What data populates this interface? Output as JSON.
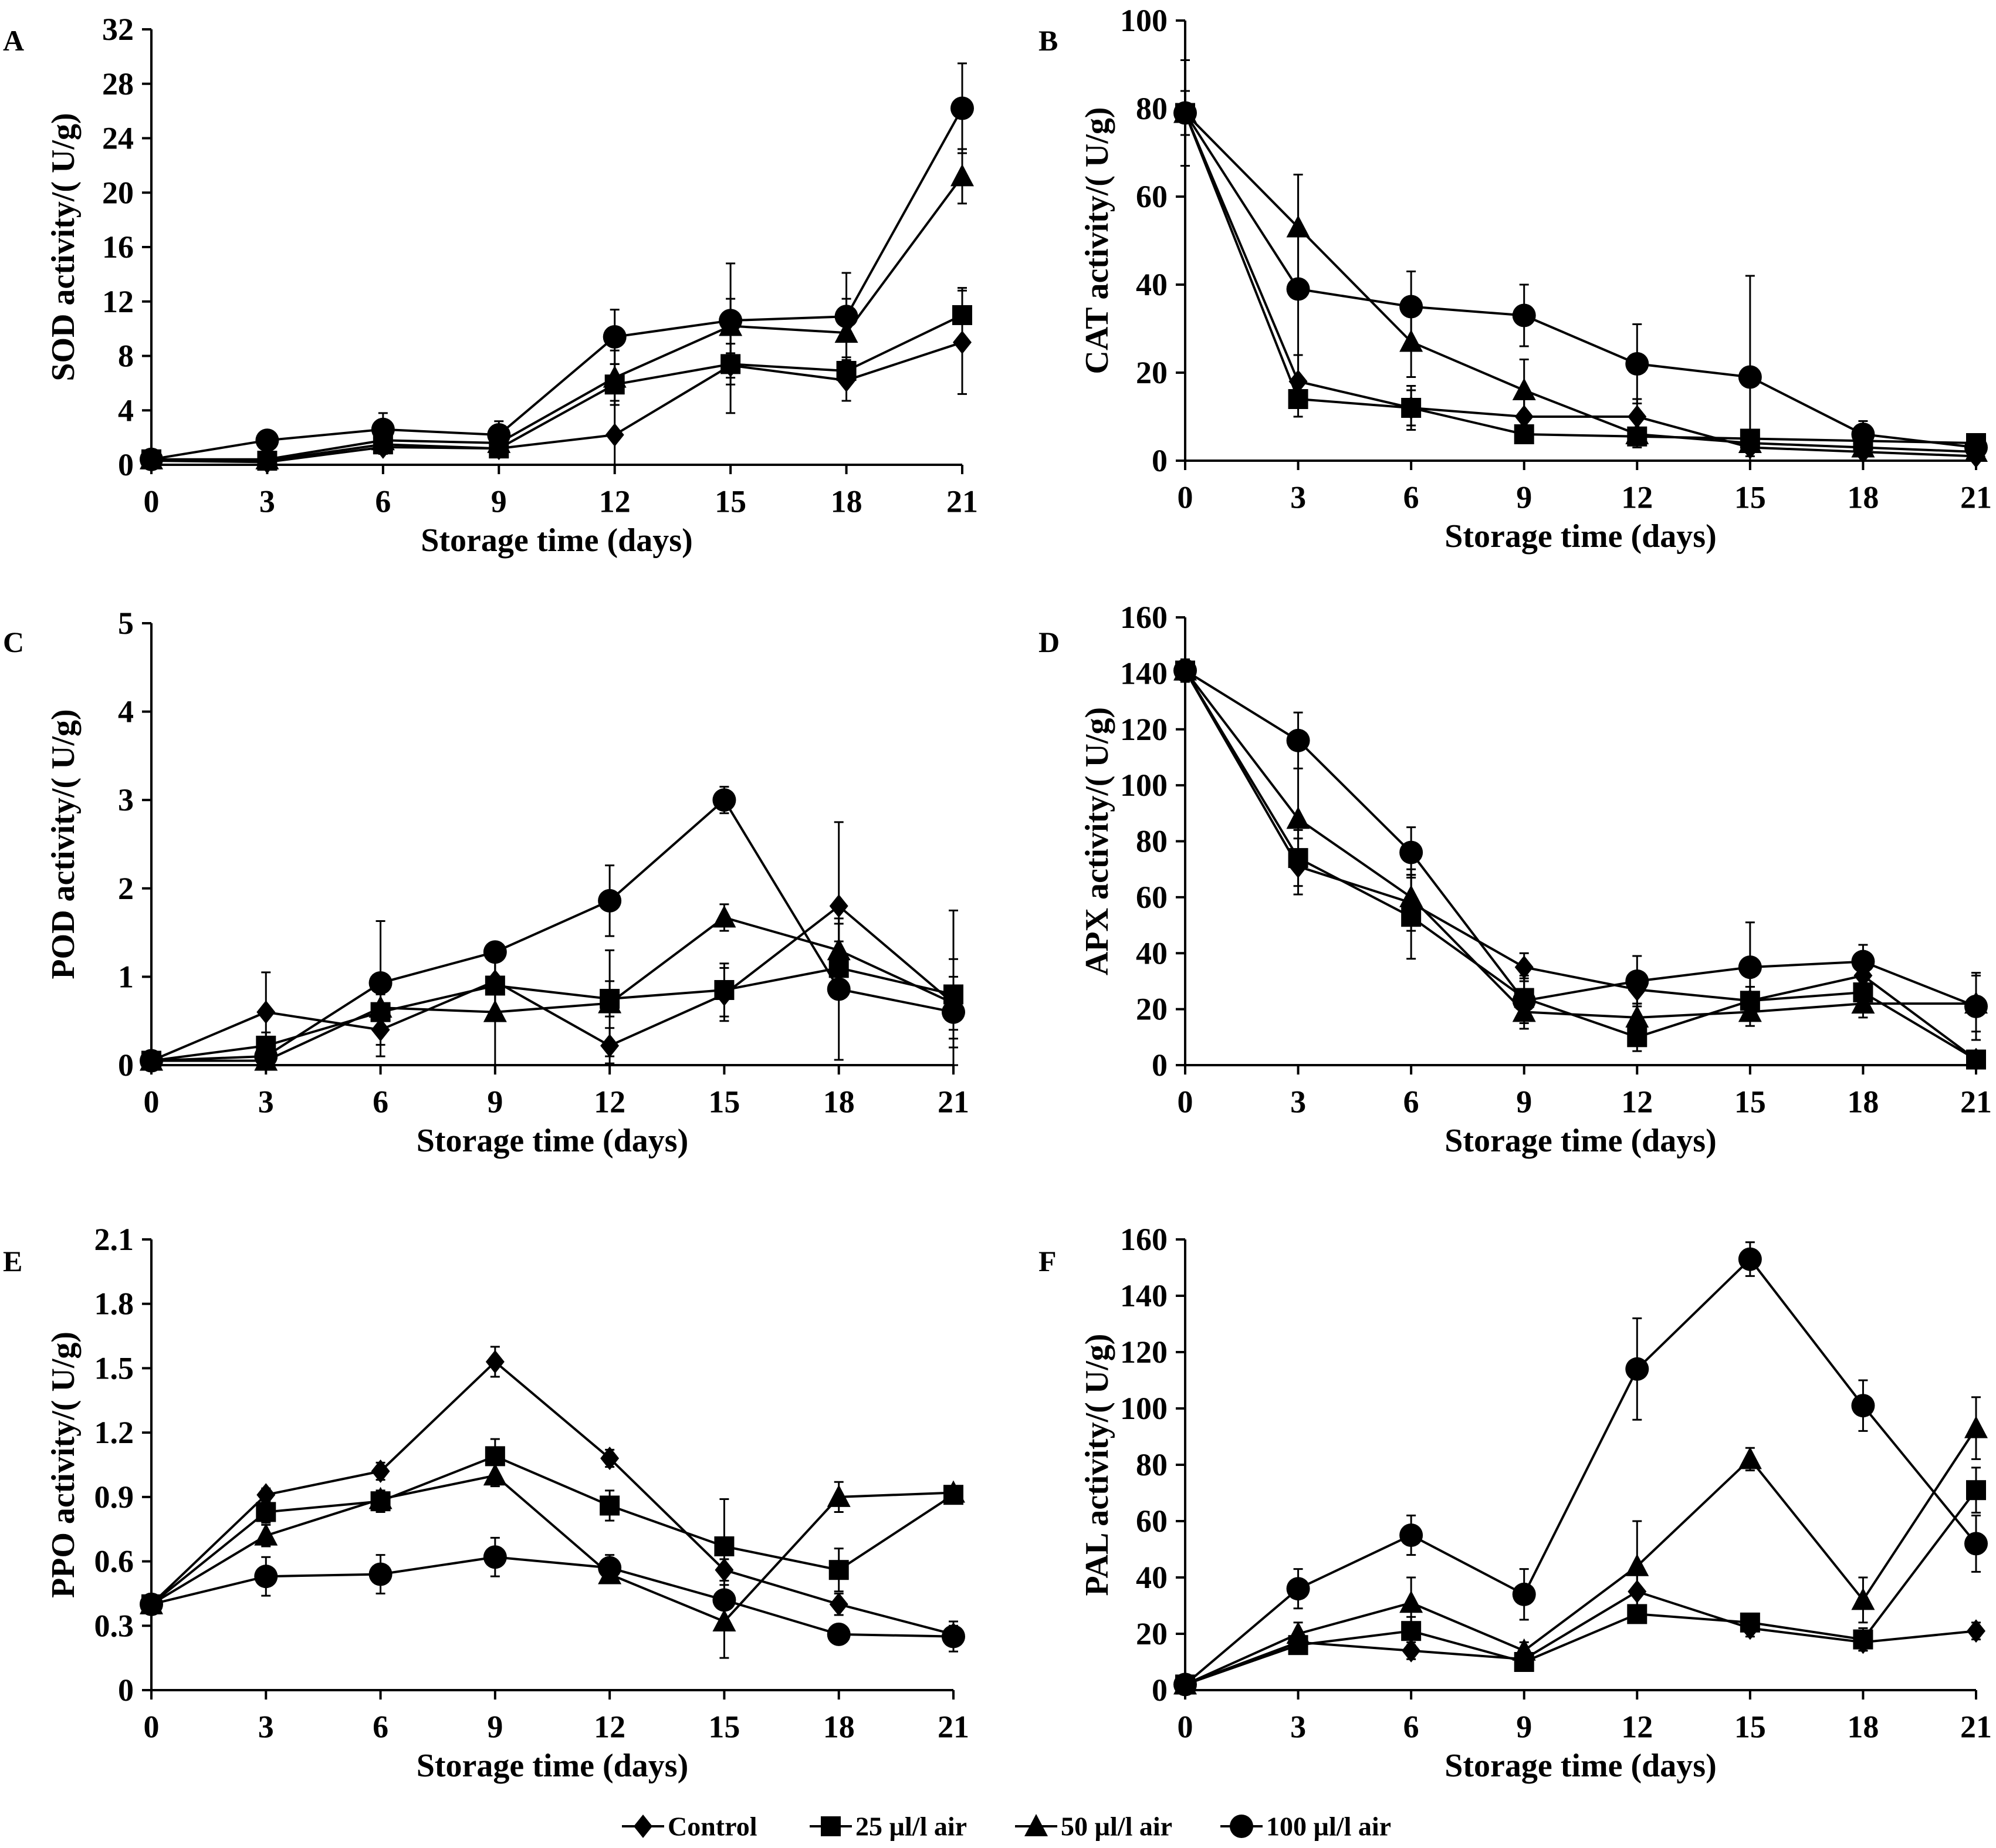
{
  "legend": [
    {
      "label": "Control",
      "marker": "diamond"
    },
    {
      "label": "25 µl/l air",
      "marker": "square"
    },
    {
      "label": "50 µl/l air",
      "marker": "triangle"
    },
    {
      "label": "100 µl/l air",
      "marker": "circle"
    }
  ],
  "chart_data": [
    {
      "panel": "A",
      "type": "line",
      "xlabel": "Storage time (days)",
      "ylabel": "SOD activity/( U/g)",
      "x": [
        0,
        3,
        6,
        9,
        12,
        15,
        18,
        21
      ],
      "ylim": [
        0,
        32
      ],
      "yticks": [
        0,
        4,
        8,
        12,
        16,
        20,
        24,
        28,
        32
      ],
      "series": [
        {
          "name": "Control",
          "marker": "diamond",
          "values": [
            0.3,
            0.2,
            1.3,
            1.2,
            2.2,
            7.3,
            6.2,
            9.0
          ],
          "errors": [
            0.3,
            0.3,
            0.5,
            0.5,
            2.5,
            3.5,
            1.5,
            3.8
          ]
        },
        {
          "name": "25 µl/l air",
          "marker": "square",
          "values": [
            0.4,
            0.3,
            1.5,
            1.2,
            5.9,
            7.4,
            6.9,
            11.0
          ],
          "errors": [
            0.3,
            0.3,
            0.5,
            0.5,
            1.5,
            1.5,
            1.0,
            2.0
          ]
        },
        {
          "name": "50 µl/l air",
          "marker": "triangle",
          "values": [
            0.4,
            0.4,
            1.8,
            1.6,
            6.4,
            10.2,
            9.7,
            21.2
          ],
          "errors": [
            0.3,
            0.3,
            0.5,
            0.5,
            2.0,
            2.0,
            2.5,
            2.0
          ]
        },
        {
          "name": "100 µl/l air",
          "marker": "circle",
          "values": [
            0.4,
            1.8,
            2.6,
            2.2,
            9.4,
            10.6,
            10.9,
            26.2
          ],
          "errors": [
            0.5,
            0.6,
            1.2,
            1.0,
            2.0,
            4.2,
            3.2,
            3.3
          ]
        }
      ]
    },
    {
      "panel": "B",
      "type": "line",
      "xlabel": "Storage time (days)",
      "ylabel": "CAT activity/( U/g)",
      "x": [
        0,
        3,
        6,
        9,
        12,
        15,
        18,
        21
      ],
      "ylim": [
        0,
        100
      ],
      "yticks": [
        0,
        20,
        40,
        60,
        80,
        100
      ],
      "series": [
        {
          "name": "Control",
          "marker": "diamond",
          "values": [
            79,
            18,
            12,
            10,
            10,
            3,
            2,
            1
          ],
          "errors": [
            5,
            6,
            5,
            4,
            4,
            2,
            2,
            1
          ]
        },
        {
          "name": "25 µl/l air",
          "marker": "square",
          "values": [
            79,
            14,
            12,
            6,
            5.5,
            5,
            4.5,
            4
          ],
          "errors": [
            5,
            4,
            4,
            2,
            2,
            2,
            2,
            2
          ]
        },
        {
          "name": "50 µl/l air",
          "marker": "triangle",
          "values": [
            79,
            53,
            27,
            16,
            6,
            4,
            3,
            2
          ],
          "errors": [
            5,
            12,
            8,
            7,
            3,
            2,
            2,
            2
          ]
        },
        {
          "name": "100 µl/l air",
          "marker": "circle",
          "values": [
            79,
            39,
            35,
            33,
            22,
            19,
            6,
            3
          ],
          "errors": [
            12,
            26,
            8,
            7,
            9,
            23,
            3,
            2
          ]
        }
      ]
    },
    {
      "panel": "C",
      "type": "line",
      "xlabel": "Storage time (days)",
      "ylabel": "POD activity/( U/g)",
      "x": [
        0,
        3,
        6,
        9,
        12,
        15,
        18,
        21
      ],
      "ylim": [
        0,
        5
      ],
      "yticks": [
        0,
        1,
        2,
        3,
        4,
        5
      ],
      "series": [
        {
          "name": "Control",
          "marker": "diamond",
          "values": [
            0.05,
            0.6,
            0.4,
            0.95,
            0.22,
            0.8,
            1.8,
            0.7
          ],
          "errors": [
            0.05,
            0.45,
            0.3,
            0.4,
            0.2,
            0.3,
            0.95,
            0.5
          ]
        },
        {
          "name": "25 µl/l air",
          "marker": "square",
          "values": [
            0.05,
            0.22,
            0.6,
            0.9,
            0.75,
            0.85,
            1.1,
            0.8
          ],
          "errors": [
            0.05,
            0.15,
            0.2,
            0.3,
            0.2,
            0.3,
            0.3,
            0.95
          ]
        },
        {
          "name": "50 µl/l air",
          "marker": "triangle",
          "values": [
            0.05,
            0.05,
            0.65,
            0.6,
            0.7,
            1.67,
            1.3,
            0.7
          ],
          "errors": [
            0.05,
            0.05,
            0.3,
            0.6,
            0.6,
            0.15,
            0.3,
            0.3
          ]
        },
        {
          "name": "100 µl/l air",
          "marker": "circle",
          "values": [
            0.05,
            0.1,
            0.93,
            1.28,
            1.86,
            3.0,
            0.86,
            0.6
          ],
          "errors": [
            0.05,
            0.1,
            0.7,
            0.1,
            0.4,
            0.15,
            0.8,
            0.3
          ]
        }
      ]
    },
    {
      "panel": "D",
      "type": "line",
      "xlabel": "Storage time (days)",
      "ylabel": "APX activity/( U/g)",
      "x": [
        0,
        3,
        6,
        9,
        12,
        15,
        18,
        21
      ],
      "ylim": [
        0,
        160
      ],
      "yticks": [
        0,
        20,
        40,
        60,
        80,
        100,
        120,
        140,
        160
      ],
      "series": [
        {
          "name": "Control",
          "marker": "diamond",
          "values": [
            141,
            71,
            58,
            35,
            27,
            23,
            32,
            2
          ],
          "errors": [
            4,
            10,
            10,
            5,
            5,
            5,
            5,
            2
          ]
        },
        {
          "name": "25 µl/l air",
          "marker": "square",
          "values": [
            141,
            74,
            53,
            24,
            10,
            23,
            26,
            2
          ],
          "errors": [
            4,
            10,
            15,
            8,
            5,
            5,
            4,
            2
          ]
        },
        {
          "name": "50 µl/l air",
          "marker": "triangle",
          "values": [
            141,
            88,
            60,
            19,
            17,
            19,
            22,
            22
          ],
          "errors": [
            4,
            18,
            10,
            6,
            5,
            5,
            5,
            10
          ]
        },
        {
          "name": "100 µl/l air",
          "marker": "circle",
          "values": [
            141,
            116,
            76,
            23,
            30,
            35,
            37,
            21
          ],
          "errors": [
            4,
            10,
            9,
            8,
            9,
            16,
            6,
            12
          ]
        }
      ]
    },
    {
      "panel": "E",
      "type": "line",
      "xlabel": "Storage time (days)",
      "ylabel": "PPO activity/( U/g)",
      "x": [
        0,
        3,
        6,
        9,
        12,
        15,
        18,
        21
      ],
      "ylim": [
        0,
        2.1
      ],
      "yticks": [
        0,
        0.3,
        0.6,
        0.9,
        1.2,
        1.5,
        1.8,
        2.1
      ],
      "series": [
        {
          "name": "Control",
          "marker": "diamond",
          "values": [
            0.4,
            0.91,
            1.02,
            1.53,
            1.08,
            0.56,
            0.4,
            0.26
          ],
          "errors": [
            0.02,
            0.03,
            0.04,
            0.07,
            0.04,
            0.05,
            0.05,
            0.04
          ]
        },
        {
          "name": "25 µl/l air",
          "marker": "square",
          "values": [
            0.4,
            0.83,
            0.88,
            1.09,
            0.86,
            0.67,
            0.56,
            0.91
          ],
          "errors": [
            0.02,
            0.05,
            0.05,
            0.08,
            0.07,
            0.22,
            0.1,
            0.04
          ]
        },
        {
          "name": "50 µl/l air",
          "marker": "triangle",
          "values": [
            0.4,
            0.72,
            0.89,
            1.0,
            0.54,
            0.32,
            0.9,
            0.92
          ],
          "errors": [
            0.02,
            0.05,
            0.04,
            0.05,
            0.04,
            0.17,
            0.07,
            0.03
          ]
        },
        {
          "name": "100 µl/l air",
          "marker": "circle",
          "values": [
            0.4,
            0.53,
            0.54,
            0.62,
            0.57,
            0.42,
            0.26,
            0.25
          ],
          "errors": [
            0.02,
            0.09,
            0.09,
            0.09,
            0.06,
            0.09,
            0.04,
            0.07
          ]
        }
      ]
    },
    {
      "panel": "F",
      "type": "line",
      "xlabel": "Storage time (days)",
      "ylabel": "PAL activity/( U/g)",
      "x": [
        0,
        3,
        6,
        9,
        12,
        15,
        18,
        21
      ],
      "ylim": [
        0,
        160
      ],
      "yticks": [
        0,
        20,
        40,
        60,
        80,
        100,
        120,
        140,
        160
      ],
      "series": [
        {
          "name": "Control",
          "marker": "diamond",
          "values": [
            2,
            17,
            14,
            11,
            35,
            22,
            17,
            21
          ],
          "errors": [
            1,
            3,
            3,
            2,
            6,
            3,
            3,
            3
          ]
        },
        {
          "name": "25 µl/l air",
          "marker": "square",
          "values": [
            2,
            16,
            21,
            10,
            27,
            24,
            18,
            71
          ],
          "errors": [
            1,
            3,
            5,
            2,
            3,
            3,
            4,
            8
          ]
        },
        {
          "name": "50 µl/l air",
          "marker": "triangle",
          "values": [
            2,
            20,
            31,
            14,
            44,
            82,
            32,
            93
          ],
          "errors": [
            1,
            4,
            9,
            3,
            16,
            4,
            8,
            11
          ]
        },
        {
          "name": "100 µl/l air",
          "marker": "circle",
          "values": [
            2,
            36,
            55,
            34,
            114,
            153,
            101,
            52
          ],
          "errors": [
            1,
            7,
            7,
            9,
            18,
            6,
            9,
            10
          ]
        }
      ]
    }
  ]
}
